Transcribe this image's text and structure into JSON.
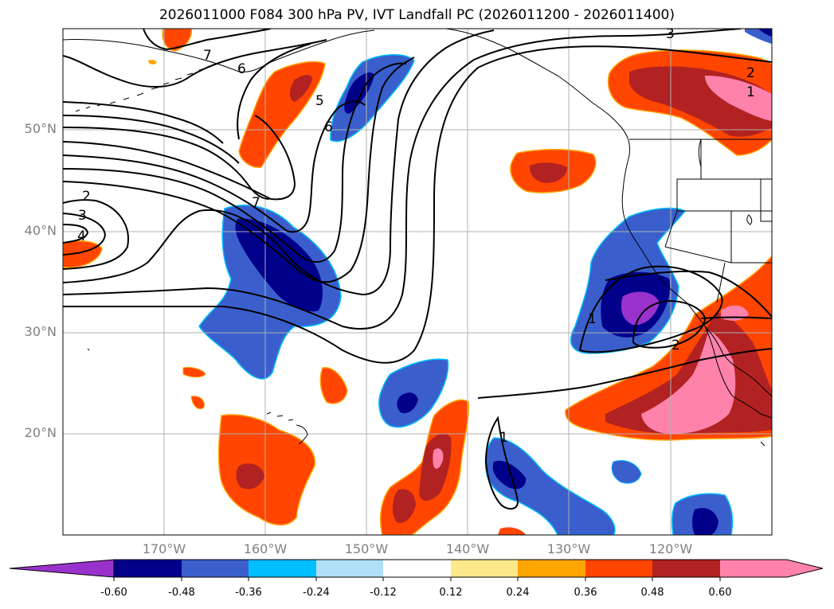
{
  "title": "2026011000 F084 300 hPa PV, IVT Landfall PC (2026011200 - 2026011400)",
  "lat_labels": [
    "50°N",
    "40°N",
    "30°N",
    "20°N"
  ],
  "lon_labels": [
    "170°W",
    "160°W",
    "150°W",
    "140°W",
    "130°W",
    "120°W"
  ],
  "contour_labels": [
    "7",
    "6",
    "5",
    "6",
    "2",
    "3",
    "4",
    "7",
    "3",
    "2",
    "1",
    "1",
    "2",
    "1"
  ],
  "colorbar": {
    "ticks": [
      "-0.60",
      "-0.48",
      "-0.36",
      "-0.24",
      "-0.12",
      "0.12",
      "0.24",
      "0.36",
      "0.48",
      "0.60"
    ],
    "colors": [
      "#9932cc",
      "#00008b",
      "#3a5fcd",
      "#00bfff",
      "#b0e0f8",
      "#ffffff",
      "#ffe88a",
      "#ffa500",
      "#ff4500",
      "#b22222",
      "#ff82ab"
    ]
  }
}
